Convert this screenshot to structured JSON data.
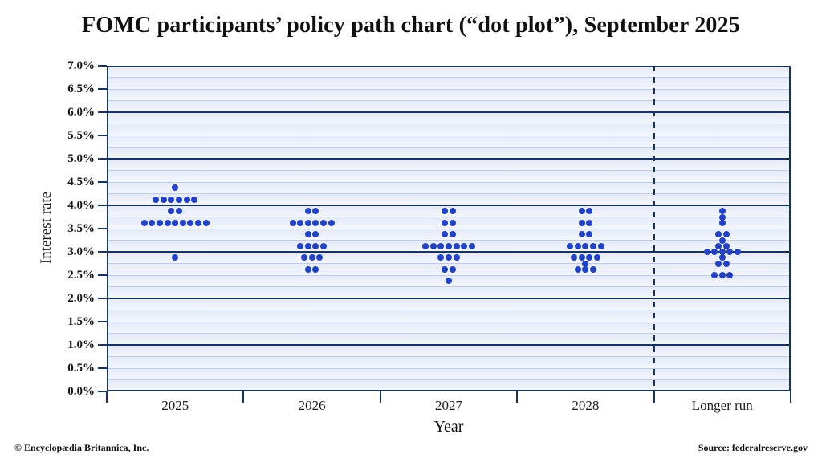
{
  "title": "FOMC participants’ policy path chart (“dot plot”), September 2025",
  "footer": {
    "left": "© Encyclopædia Britannica, Inc.",
    "right": "Source: federalreserve.gov"
  },
  "chart_data": {
    "type": "scatter",
    "subtype": "fomc-dot-plot",
    "title": "FOMC participants’ policy path chart (“dot plot”), September 2025",
    "xlabel": "Year",
    "ylabel": "Interest rate",
    "categories": [
      "2025",
      "2026",
      "2027",
      "2028",
      "Longer run"
    ],
    "y_axis": {
      "min": 0,
      "max": 7,
      "label_step": 0.5,
      "minor_step": 0.25,
      "major_step": 1.0,
      "unit": "%"
    },
    "y_tick_labels": [
      "7.0%",
      "6.5%",
      "6.0%",
      "5.5%",
      "5.0%",
      "4.5%",
      "4.0%",
      "3.5%",
      "3.0%",
      "2.5%",
      "2.0%",
      "1.5%",
      "1.0%",
      "0.5%",
      "0.0%"
    ],
    "dashed_separator_before": "Longer run",
    "grid": "on",
    "legend": "none",
    "series": [
      {
        "category": "2025",
        "dots": [
          {
            "rate": 4.375,
            "count": 1
          },
          {
            "rate": 4.125,
            "count": 6
          },
          {
            "rate": 3.875,
            "count": 2
          },
          {
            "rate": 3.625,
            "count": 9
          },
          {
            "rate": 2.875,
            "count": 1
          }
        ]
      },
      {
        "category": "2026",
        "dots": [
          {
            "rate": 3.875,
            "count": 2
          },
          {
            "rate": 3.625,
            "count": 6
          },
          {
            "rate": 3.375,
            "count": 2
          },
          {
            "rate": 3.125,
            "count": 4
          },
          {
            "rate": 2.875,
            "count": 3
          },
          {
            "rate": 2.625,
            "count": 2
          }
        ]
      },
      {
        "category": "2027",
        "dots": [
          {
            "rate": 3.875,
            "count": 2
          },
          {
            "rate": 3.625,
            "count": 2
          },
          {
            "rate": 3.375,
            "count": 2
          },
          {
            "rate": 3.125,
            "count": 7
          },
          {
            "rate": 2.875,
            "count": 3
          },
          {
            "rate": 2.625,
            "count": 2
          },
          {
            "rate": 2.375,
            "count": 1
          }
        ]
      },
      {
        "category": "2028",
        "dots": [
          {
            "rate": 3.875,
            "count": 2
          },
          {
            "rate": 3.625,
            "count": 2
          },
          {
            "rate": 3.375,
            "count": 2
          },
          {
            "rate": 3.125,
            "count": 5
          },
          {
            "rate": 2.875,
            "count": 4
          },
          {
            "rate": 2.75,
            "count": 1
          },
          {
            "rate": 2.625,
            "count": 3
          }
        ]
      },
      {
        "category": "Longer run",
        "dots": [
          {
            "rate": 3.875,
            "count": 1
          },
          {
            "rate": 3.75,
            "count": 1
          },
          {
            "rate": 3.625,
            "count": 1
          },
          {
            "rate": 3.375,
            "count": 2
          },
          {
            "rate": 3.25,
            "count": 1
          },
          {
            "rate": 3.125,
            "count": 2
          },
          {
            "rate": 3.0,
            "count": 5
          },
          {
            "rate": 2.875,
            "count": 1
          },
          {
            "rate": 2.75,
            "count": 2
          },
          {
            "rate": 2.5,
            "count": 3
          }
        ]
      }
    ],
    "colors": {
      "dot": "#2142c6",
      "axis": "#16335f",
      "major_grid": "#16335f",
      "minor_grid": "#bfcbe9",
      "plot_bg_top": "#e3e9f7",
      "plot_bg_bottom": "#f3f6fd",
      "title_text": "#0f0f0f"
    }
  }
}
